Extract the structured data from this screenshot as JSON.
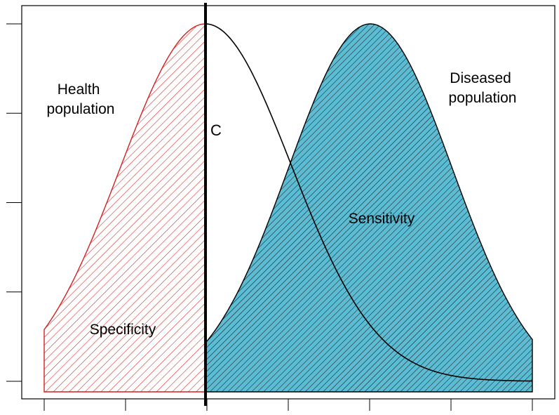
{
  "labels": {
    "healthy": [
      "Health",
      "population"
    ],
    "diseased": [
      "Diseased",
      "population"
    ],
    "cutoff": "C",
    "specificity": "Specificity",
    "sensitivity": "Sensitivity"
  },
  "colors": {
    "specificity_hatch": "#d42020",
    "sensitivity_fill": "#5bbcd3",
    "sensitivity_hatch": "#111111",
    "curve": "#000000",
    "cutoff_line": "#000000",
    "frame": "#000000"
  },
  "axes": {
    "x_ticks": 7,
    "y_ticks": 5,
    "tick_labels_shown": false
  }
}
